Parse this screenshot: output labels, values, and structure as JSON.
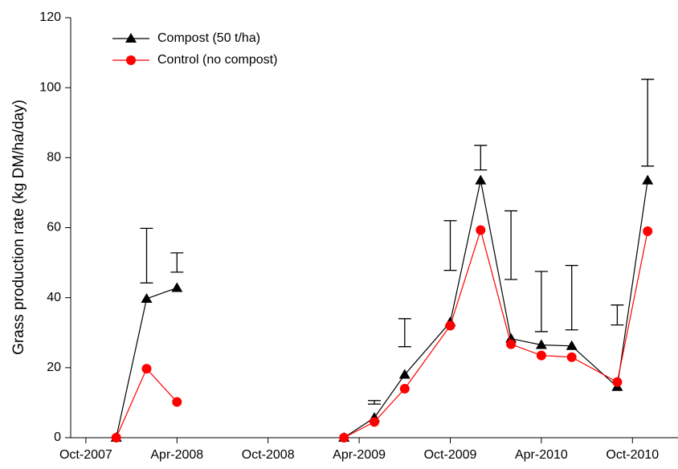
{
  "chart_data": {
    "type": "line",
    "y_label": "Grass production rate (kg DM/ha/day)",
    "x": [
      "2007-12",
      "2008-02",
      "2008-04",
      "2008-10",
      "2009-03",
      "2009-05",
      "2009-07",
      "2009-10",
      "2009-12",
      "2010-02",
      "2010-04",
      "2010-06",
      "2010-09",
      "2010-11"
    ],
    "series": [
      {
        "name": "Compost (50 t/ha)",
        "color": "#000000",
        "marker": "triangle",
        "values": [
          0,
          39.7,
          42.8,
          null,
          0,
          5.7,
          18,
          33,
          73.5,
          28.3,
          26.5,
          26.2,
          14.5,
          73.5
        ]
      },
      {
        "name": "Control (no compost)",
        "color": "#ff0000",
        "marker": "circle",
        "values": [
          0,
          19.7,
          10.2,
          null,
          0,
          4.5,
          14,
          32,
          59.3,
          26.7,
          23.5,
          23,
          15.9,
          59
        ]
      }
    ],
    "error_bars": {
      "low": [
        null,
        44.2,
        47.3,
        null,
        null,
        9.6,
        26,
        47.8,
        76.5,
        45.2,
        30.3,
        30.8,
        32.2,
        77.6
      ],
      "high": [
        null,
        59.8,
        52.8,
        null,
        null,
        10.6,
        34,
        62,
        83.5,
        64.8,
        47.5,
        49.2,
        37.9,
        102.4
      ]
    },
    "xlim": [
      "2007-09",
      "2011-01"
    ],
    "xticks": [
      {
        "value": "2007-10",
        "label": "Oct-2007"
      },
      {
        "value": "2008-04",
        "label": "Apr-2008"
      },
      {
        "value": "2008-10",
        "label": "Oct-2008"
      },
      {
        "value": "2009-04",
        "label": "Apr-2009"
      },
      {
        "value": "2009-10",
        "label": "Oct-2009"
      },
      {
        "value": "2010-04",
        "label": "Apr-2010"
      },
      {
        "value": "2010-10",
        "label": "Oct-2010"
      }
    ],
    "ylim": [
      0,
      120
    ],
    "yticks": [
      0,
      20,
      40,
      60,
      80,
      100,
      120
    ],
    "legend": "top-left"
  }
}
